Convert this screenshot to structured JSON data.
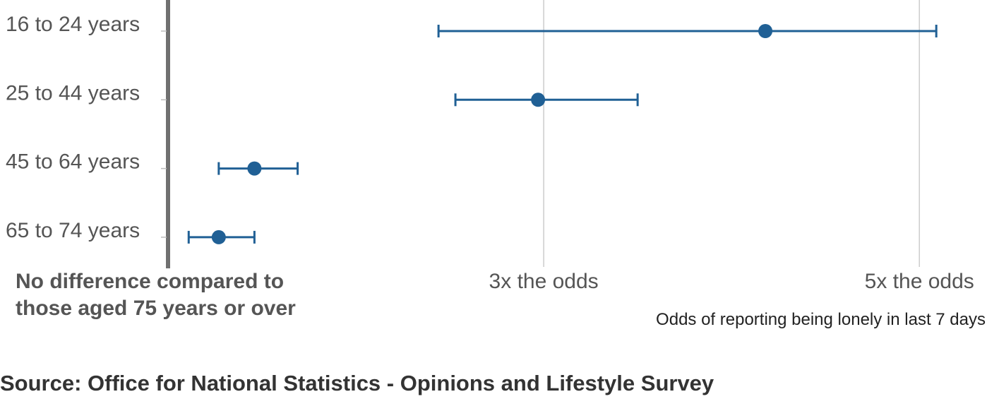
{
  "chart_data": {
    "type": "scatter",
    "xlabel": "Odds of reporting being lonely in last 7 days",
    "baseline_label": [
      "No difference compared to",
      "those aged 75 years or over"
    ],
    "x_ticks": [
      {
        "value": 3,
        "label": "3x the odds"
      },
      {
        "value": 5,
        "label": "5x the odds"
      }
    ],
    "xlim": [
      1,
      5.36
    ],
    "categories": [
      "16 to 24 years",
      "25 to 44 years",
      "45 to 64 years",
      "65 to 74 years"
    ],
    "series": [
      {
        "points": [
          {
            "category": "16 to 24 years",
            "value": 4.18,
            "lower": 2.44,
            "upper": 5.09
          },
          {
            "category": "25 to 44 years",
            "value": 2.97,
            "lower": 2.53,
            "upper": 3.5
          },
          {
            "category": "45 to 64 years",
            "value": 1.46,
            "lower": 1.27,
            "upper": 1.69
          },
          {
            "category": "65 to 74 years",
            "value": 1.27,
            "lower": 1.11,
            "upper": 1.46
          }
        ]
      }
    ],
    "grid": true,
    "colors": {
      "marker": "#206095",
      "grid": "#cccccc",
      "baseline": "#707070"
    }
  },
  "source_text": "Source: Office for National Statistics - Opinions and Lifestyle Survey"
}
